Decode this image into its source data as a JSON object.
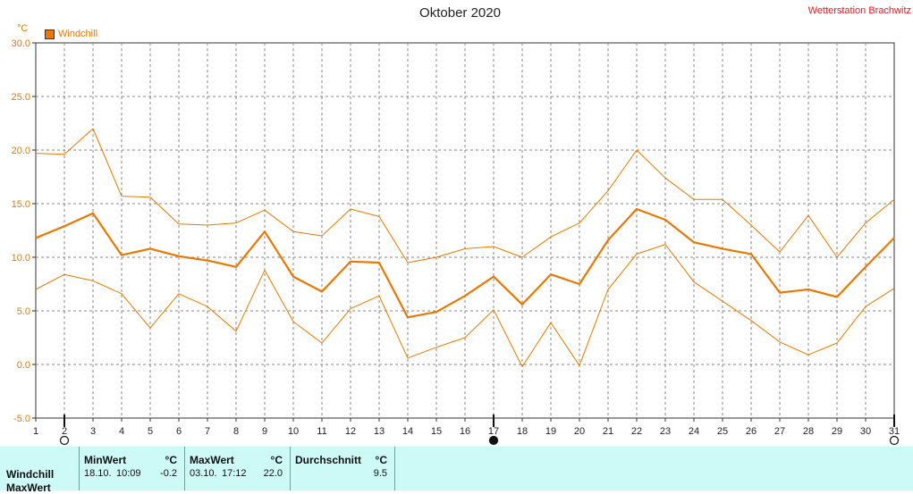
{
  "header": {
    "title": "Oktober 2020",
    "station": "Wetterstation Brachwitz",
    "unit_label": "°C"
  },
  "chart_data": {
    "type": "line",
    "xlim": [
      1,
      31
    ],
    "ylim": [
      -5,
      30
    ],
    "grid": true,
    "x": [
      1,
      2,
      3,
      4,
      5,
      6,
      7,
      8,
      9,
      10,
      11,
      12,
      13,
      14,
      15,
      16,
      17,
      18,
      19,
      20,
      21,
      22,
      23,
      24,
      25,
      26,
      27,
      28,
      29,
      30,
      31
    ],
    "y_ticks": [
      "30.0",
      "25.0",
      "20.0",
      "15.0",
      "10.0",
      "5.0",
      "0.0",
      "-5.0"
    ],
    "x_ticks": [
      "1",
      "2",
      "3",
      "4",
      "5",
      "6",
      "7",
      "8",
      "9",
      "10",
      "11",
      "12",
      "13",
      "14",
      "15",
      "16",
      "17",
      "18",
      "19",
      "20",
      "21",
      "22",
      "23",
      "24",
      "25",
      "26",
      "27",
      "28",
      "29",
      "30",
      "31"
    ],
    "legend": "Windchill",
    "series": [
      {
        "name": "Windchill",
        "values": [
          11.8,
          12.9,
          14.1,
          10.2,
          10.8,
          10.1,
          9.7,
          9.1,
          12.4,
          8.2,
          6.8,
          9.6,
          9.5,
          4.4,
          4.9,
          6.4,
          8.2,
          5.6,
          8.4,
          7.5,
          11.6,
          14.5,
          13.5,
          11.4,
          10.8,
          10.3,
          6.7,
          7.0,
          6.3,
          9.1,
          11.8
        ]
      },
      {
        "values": [
          19.7,
          19.6,
          22.0,
          15.7,
          15.6,
          13.1,
          13.0,
          13.2,
          14.4,
          12.4,
          12.0,
          14.5,
          13.8,
          9.5,
          10.0,
          10.8,
          11.0,
          10.0,
          11.9,
          13.2,
          16.2,
          20.0,
          17.4,
          15.4,
          15.4,
          13.0,
          10.5,
          13.9,
          10.0,
          13.2,
          15.4
        ]
      },
      {
        "values": [
          7.0,
          8.4,
          7.8,
          6.6,
          3.4,
          6.6,
          5.4,
          3.1,
          8.8,
          4.0,
          2.0,
          5.2,
          6.4,
          0.6,
          1.6,
          2.5,
          5.1,
          -0.2,
          3.9,
          -0.1,
          7.0,
          10.3,
          11.2,
          7.7,
          5.9,
          4.1,
          2.1,
          0.9,
          2.0,
          5.4,
          7.1
        ]
      }
    ],
    "markers": [
      {
        "x": 2,
        "symbol": "open-circle"
      },
      {
        "x": 17,
        "symbol": "filled-circle"
      },
      {
        "x": 31,
        "symbol": "open-circle"
      }
    ]
  },
  "table": {
    "row_label": "Windchill",
    "row_label_2": "MaxWert",
    "min": {
      "header": "MinWert",
      "unit": "°C",
      "date": "18.10.",
      "time": "10:09",
      "value": "-0.2"
    },
    "max": {
      "header": "MaxWert",
      "unit": "°C",
      "date": "03.10.",
      "time": "17:12",
      "value": "22.0"
    },
    "avg": {
      "header": "Durchschnitt",
      "unit": "°C",
      "value": "9.5"
    }
  },
  "colors": {
    "series": "#e87800",
    "grid": "#8a8a8a",
    "station": "#e8151b",
    "table_bg": "#cdf9f6"
  }
}
